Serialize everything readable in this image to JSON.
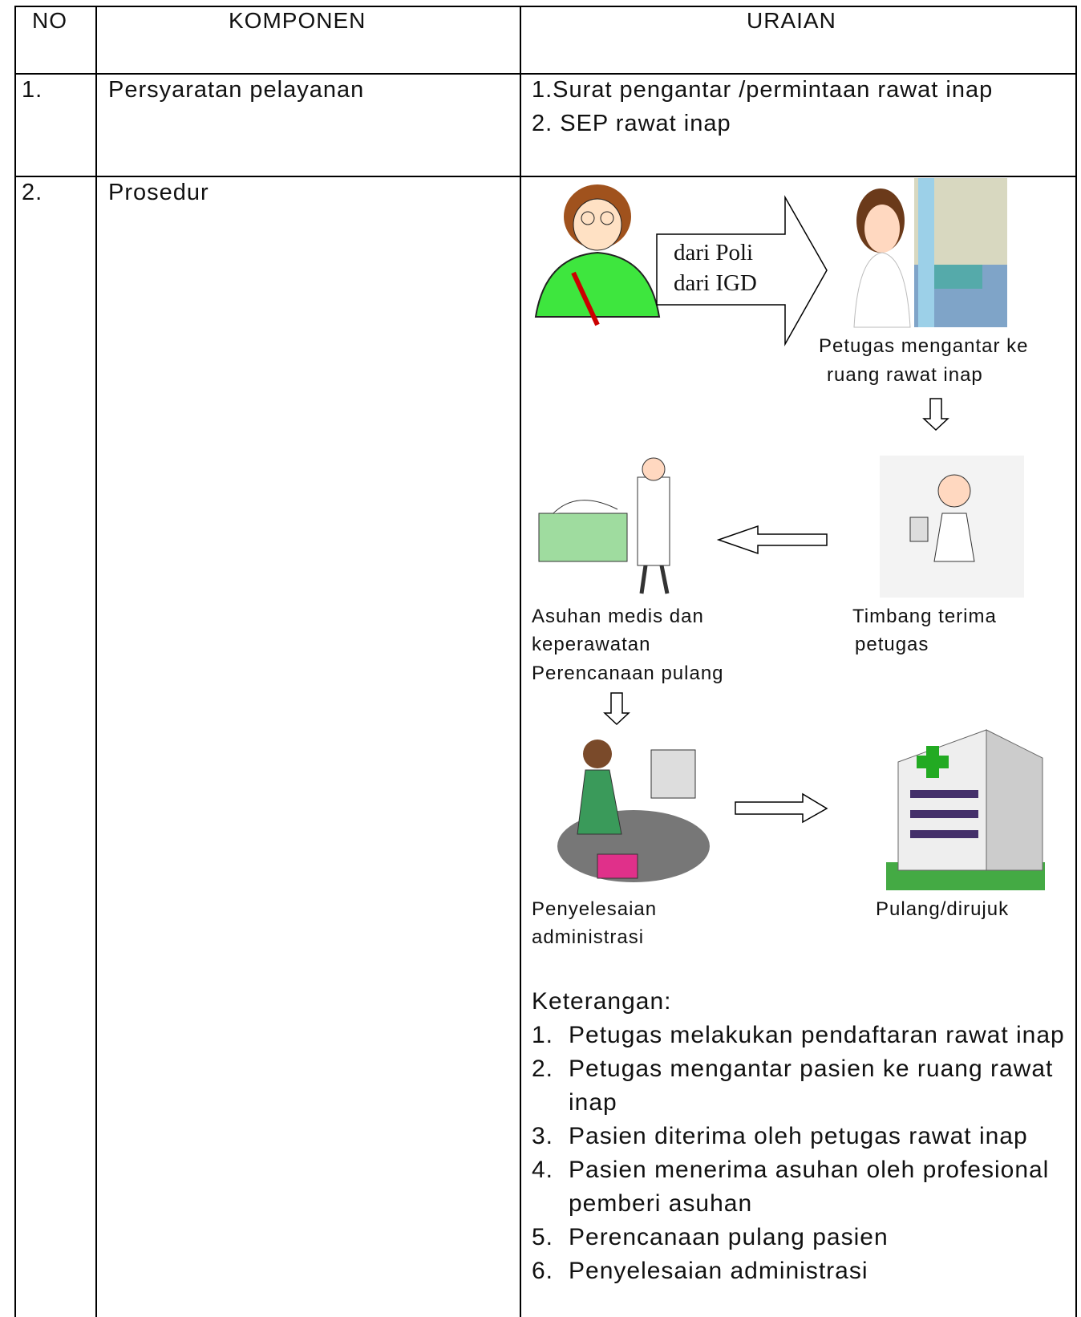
{
  "table": {
    "columns": [
      "NO",
      "KOMPONEN",
      "URAIAN"
    ],
    "rows": [
      {
        "no": "1.",
        "komponen": "Persyaratan pelayanan",
        "uraian": [
          "1.Surat pengantar /permintaan rawat inap",
          "2. SEP rawat inap"
        ]
      },
      {
        "no": "2.",
        "komponen": "Prosedur",
        "diagram": {
          "arrow_text": [
            "dari Poli",
            "dari IGD"
          ],
          "steps": [
            {
              "label": [
                "Petugas mengantar  ke",
                "ruang rawat inap"
              ]
            },
            {
              "label": [
                "Timbang terima",
                "petugas"
              ]
            },
            {
              "label": [
                "Asuhan medis dan",
                "keperawatan",
                "Perencanaan pulang"
              ]
            },
            {
              "label": [
                "Penyelesaian",
                "administrasi"
              ]
            },
            {
              "label": [
                "Pulang/dirujuk"
              ]
            }
          ]
        },
        "keterangan": {
          "title": "Keterangan:",
          "items": [
            {
              "no": "1.",
              "text": "Petugas melakukan pendaftaran rawat inap"
            },
            {
              "no": "2.",
              "text": "Petugas mengantar pasien ke ruang rawat inap"
            },
            {
              "no": "3.",
              "text": "Pasien diterima oleh petugas rawat inap"
            },
            {
              "no": "4.",
              "text": "Pasien menerima asuhan oleh profesional pemberi asuhan"
            },
            {
              "no": "5.",
              "text": "Perencanaan pulang pasien"
            },
            {
              "no": "6.",
              "text": "Penyelesaian administrasi"
            }
          ]
        }
      }
    ]
  }
}
